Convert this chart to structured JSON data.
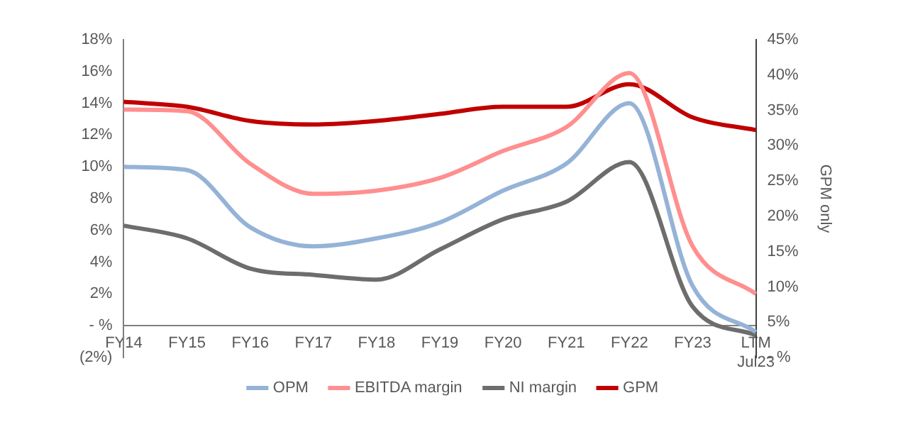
{
  "chart_data": {
    "type": "line",
    "categories": [
      "FY14",
      "FY15",
      "FY16",
      "FY17",
      "FY18",
      "FY19",
      "FY20",
      "FY21",
      "FY22",
      "FY23",
      "LTM Jul23"
    ],
    "series": [
      {
        "name": "OPM",
        "color": "#95b3d7",
        "values": [
          10.0,
          9.8,
          6.2,
          5.0,
          5.5,
          6.5,
          8.5,
          10.2,
          14.0,
          2.5,
          -0.4
        ]
      },
      {
        "name": "EBITDA margin",
        "color": "#ff8f8f",
        "values": [
          13.6,
          13.5,
          10.2,
          8.3,
          8.5,
          9.3,
          11.0,
          12.5,
          15.9,
          5.0,
          2.0
        ]
      },
      {
        "name": "NI margin",
        "color": "#6d6d6d",
        "values": [
          6.3,
          5.5,
          3.6,
          3.2,
          2.9,
          4.8,
          6.7,
          7.8,
          10.3,
          1.2,
          -0.6
        ]
      },
      {
        "name": "GPM",
        "color": "#c00000",
        "axis": "y2",
        "values": [
          36.2,
          35.5,
          33.5,
          33.0,
          33.5,
          34.5,
          35.5,
          35.5,
          38.7,
          34.0,
          32.2
        ]
      }
    ],
    "ylim": [
      -2,
      18
    ],
    "yticks": [
      {
        "value": -2,
        "label": "(2%)"
      },
      {
        "value": 0,
        "label": "- %"
      },
      {
        "value": 2,
        "label": "2%"
      },
      {
        "value": 4,
        "label": "4%"
      },
      {
        "value": 6,
        "label": "6%"
      },
      {
        "value": 8,
        "label": "8%"
      },
      {
        "value": 10,
        "label": "10%"
      },
      {
        "value": 12,
        "label": "12%"
      },
      {
        "value": 14,
        "label": "14%"
      },
      {
        "value": 16,
        "label": "16%"
      },
      {
        "value": 18,
        "label": "18%"
      }
    ],
    "y2lim": [
      0,
      45
    ],
    "y2ticks": [
      {
        "value": 0,
        "label": "- %"
      },
      {
        "value": 5,
        "label": "5%"
      },
      {
        "value": 10,
        "label": "10%"
      },
      {
        "value": 15,
        "label": "15%"
      },
      {
        "value": 20,
        "label": "20%"
      },
      {
        "value": 25,
        "label": "25%"
      },
      {
        "value": 30,
        "label": "30%"
      },
      {
        "value": 35,
        "label": "35%"
      },
      {
        "value": 40,
        "label": "40%"
      },
      {
        "value": 45,
        "label": "45%"
      }
    ],
    "y2label": "GPM only",
    "grid": false,
    "legend": "bottom"
  }
}
